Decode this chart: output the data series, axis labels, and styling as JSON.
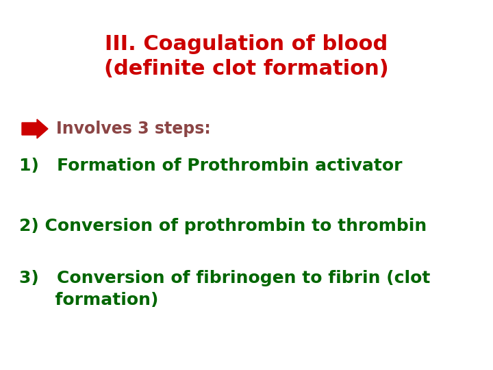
{
  "title_line1": "III. Coagulation of blood",
  "title_line2": "(definite clot formation)",
  "title_color": "#cc0000",
  "title_fontsize": 22,
  "title_fontweight": "bold",
  "bullet_text": "Involves 3 steps:",
  "bullet_color": "#8B4545",
  "bullet_fontsize": 17,
  "arrow_color": "#cc0000",
  "step1_text": "1)   Formation of Prothrombin activator",
  "step1_color": "#006600",
  "step1_fontsize": 18,
  "step2_text": "2) Conversion of prothrombin to thrombin",
  "step2_color": "#006600",
  "step2_fontsize": 18,
  "step3_line1": "3)   Conversion of fibrinogen to fibrin (clot",
  "step3_line2": "      formation)",
  "step3_color": "#006600",
  "step3_fontsize": 18,
  "bg_color": "#ffffff"
}
